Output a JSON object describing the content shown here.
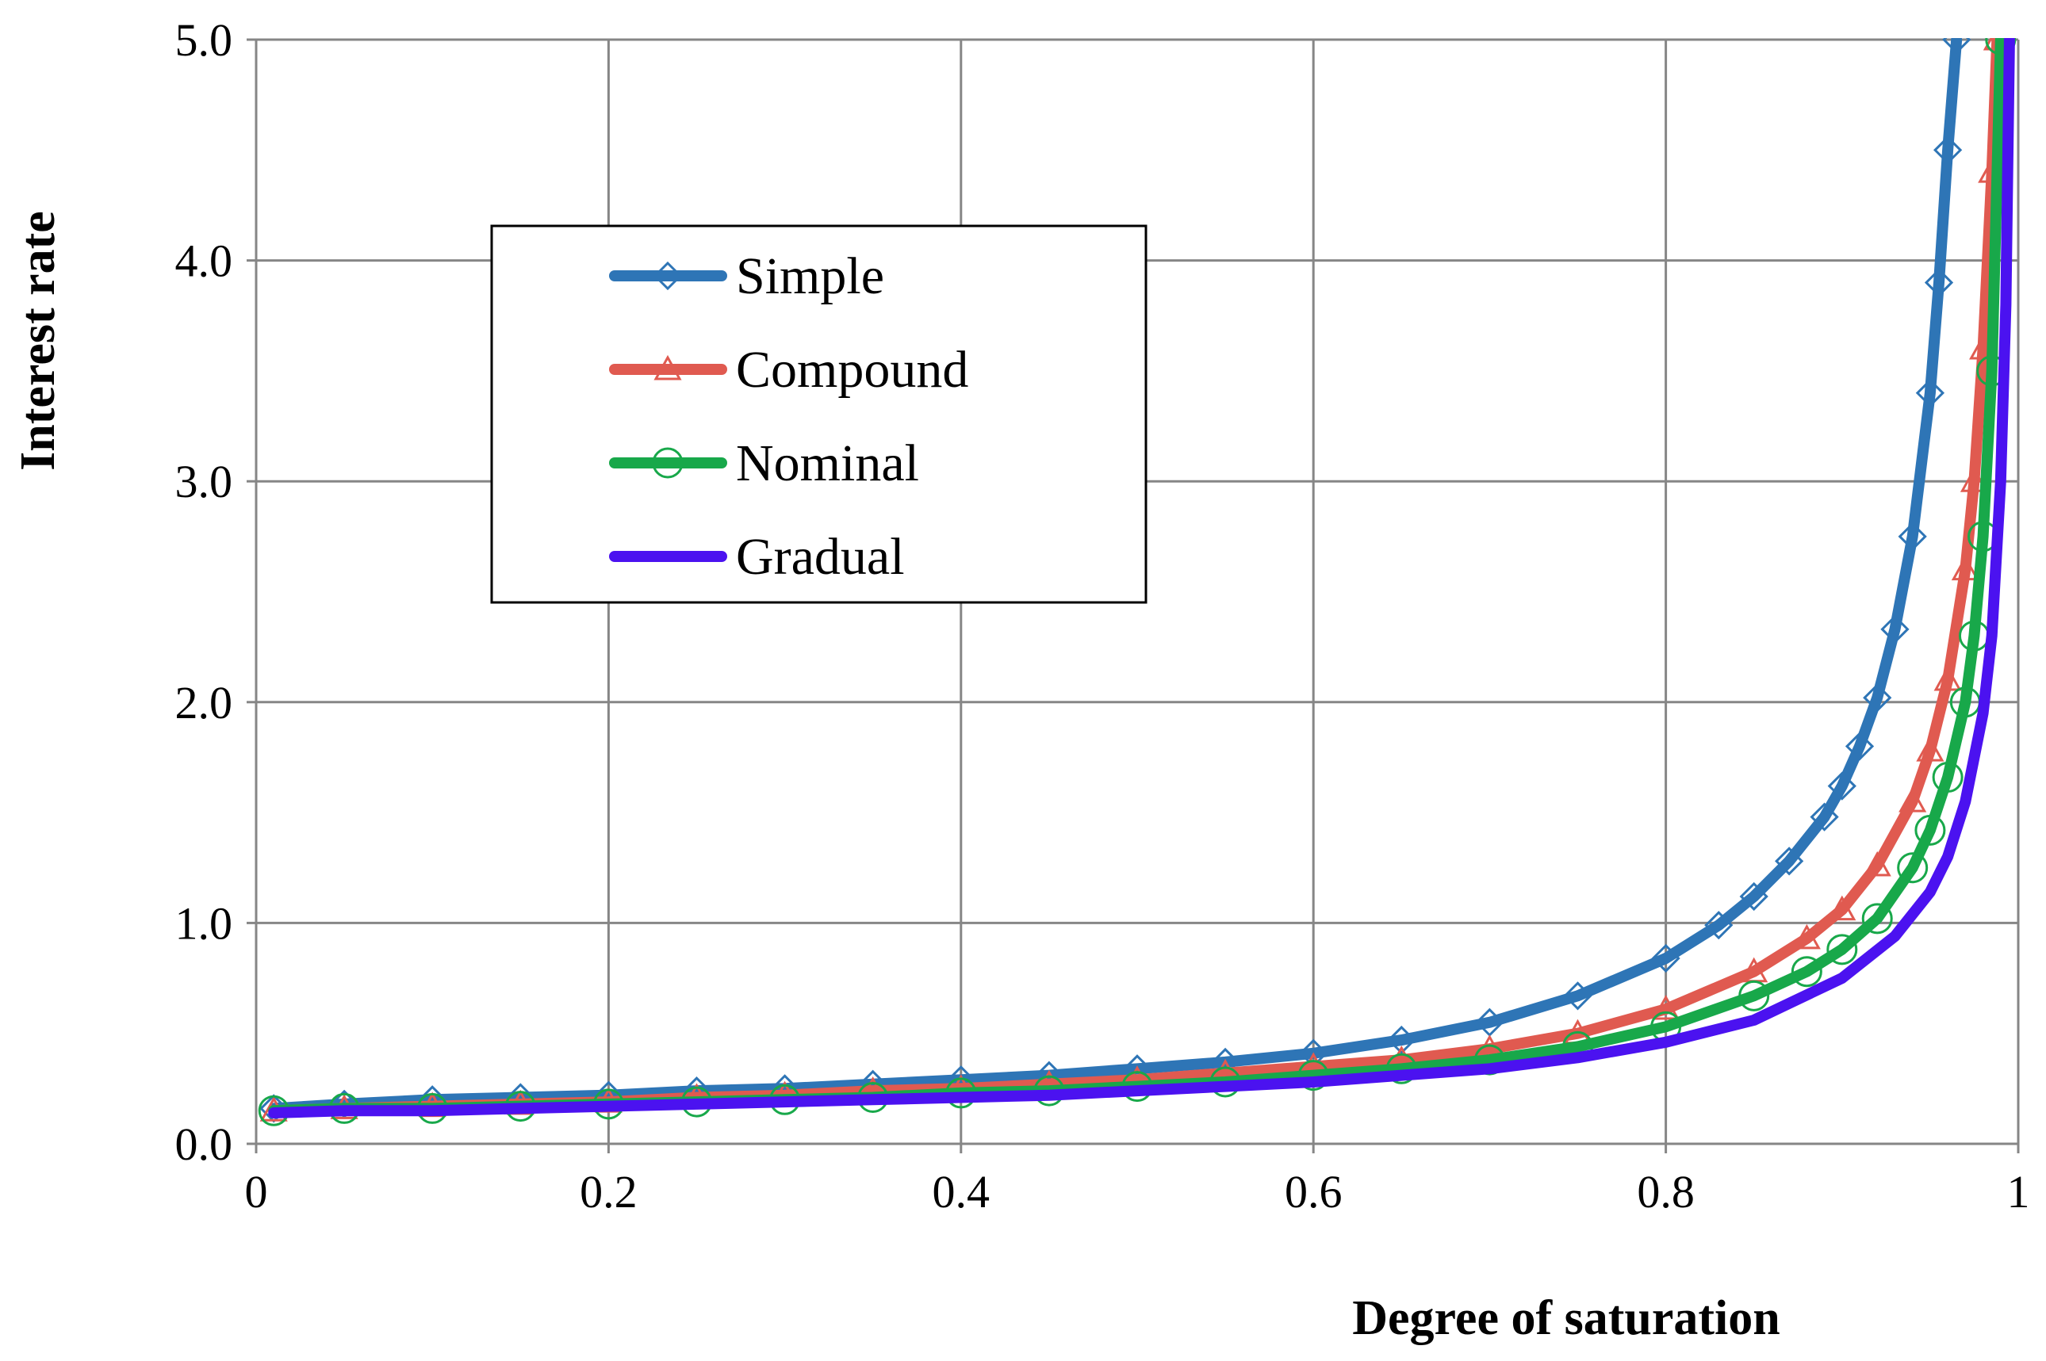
{
  "chart_data": {
    "type": "line",
    "title": "",
    "xlabel": "Degree of saturation",
    "ylabel": "Interest rate",
    "xlim": [
      0,
      1
    ],
    "ylim": [
      0,
      5
    ],
    "grid": true,
    "legend_position": "upper-left-center",
    "x_ticks": [
      "0",
      "0.2",
      "0.4",
      "0.6",
      "0.8",
      "1"
    ],
    "y_ticks": [
      "0.0",
      "1.0",
      "2.0",
      "3.0",
      "4.0",
      "5.0"
    ],
    "series": [
      {
        "name": "Simple",
        "color": "#2e75b6",
        "marker": "diamond",
        "x": [
          0.01,
          0.05,
          0.1,
          0.15,
          0.2,
          0.25,
          0.3,
          0.35,
          0.4,
          0.45,
          0.5,
          0.55,
          0.6,
          0.65,
          0.7,
          0.75,
          0.8,
          0.83,
          0.85,
          0.87,
          0.89,
          0.9,
          0.91,
          0.92,
          0.93,
          0.94,
          0.95,
          0.955,
          0.96,
          0.965
        ],
        "y": [
          0.16,
          0.18,
          0.2,
          0.21,
          0.22,
          0.24,
          0.25,
          0.27,
          0.29,
          0.31,
          0.34,
          0.37,
          0.41,
          0.47,
          0.55,
          0.67,
          0.84,
          0.99,
          1.12,
          1.28,
          1.48,
          1.62,
          1.8,
          2.02,
          2.33,
          2.75,
          3.4,
          3.9,
          4.5,
          5.0
        ]
      },
      {
        "name": "Compound",
        "color": "#e05a50",
        "marker": "triangle",
        "x": [
          0.01,
          0.05,
          0.1,
          0.15,
          0.2,
          0.25,
          0.3,
          0.35,
          0.4,
          0.45,
          0.5,
          0.55,
          0.6,
          0.65,
          0.7,
          0.75,
          0.8,
          0.85,
          0.88,
          0.9,
          0.92,
          0.94,
          0.95,
          0.96,
          0.97,
          0.975,
          0.98,
          0.985,
          0.988
        ],
        "y": [
          0.15,
          0.16,
          0.17,
          0.18,
          0.19,
          0.21,
          0.22,
          0.24,
          0.25,
          0.27,
          0.29,
          0.32,
          0.35,
          0.38,
          0.43,
          0.5,
          0.61,
          0.78,
          0.93,
          1.06,
          1.26,
          1.55,
          1.78,
          2.1,
          2.6,
          3.0,
          3.6,
          4.4,
          5.0
        ]
      },
      {
        "name": "Nominal",
        "color": "#18a84a",
        "marker": "circle",
        "x": [
          0.01,
          0.05,
          0.1,
          0.15,
          0.2,
          0.25,
          0.3,
          0.35,
          0.4,
          0.45,
          0.5,
          0.55,
          0.6,
          0.65,
          0.7,
          0.75,
          0.8,
          0.85,
          0.88,
          0.9,
          0.92,
          0.94,
          0.95,
          0.96,
          0.97,
          0.975,
          0.98,
          0.985,
          0.99
        ],
        "y": [
          0.15,
          0.16,
          0.16,
          0.17,
          0.18,
          0.19,
          0.2,
          0.21,
          0.23,
          0.24,
          0.26,
          0.28,
          0.31,
          0.34,
          0.38,
          0.44,
          0.53,
          0.67,
          0.78,
          0.88,
          1.02,
          1.25,
          1.42,
          1.66,
          2.0,
          2.3,
          2.75,
          3.5,
          5.0
        ]
      },
      {
        "name": "Gradual",
        "color": "#4b12f0",
        "marker": "none",
        "x": [
          0.01,
          0.05,
          0.1,
          0.15,
          0.2,
          0.25,
          0.3,
          0.35,
          0.4,
          0.45,
          0.5,
          0.55,
          0.6,
          0.65,
          0.7,
          0.75,
          0.8,
          0.85,
          0.9,
          0.93,
          0.95,
          0.96,
          0.97,
          0.98,
          0.985,
          0.99,
          0.993,
          0.995
        ],
        "y": [
          0.14,
          0.15,
          0.15,
          0.16,
          0.17,
          0.18,
          0.19,
          0.2,
          0.21,
          0.22,
          0.24,
          0.26,
          0.28,
          0.31,
          0.34,
          0.39,
          0.46,
          0.56,
          0.75,
          0.94,
          1.14,
          1.3,
          1.55,
          1.95,
          2.3,
          3.0,
          3.8,
          5.0
        ]
      }
    ]
  }
}
